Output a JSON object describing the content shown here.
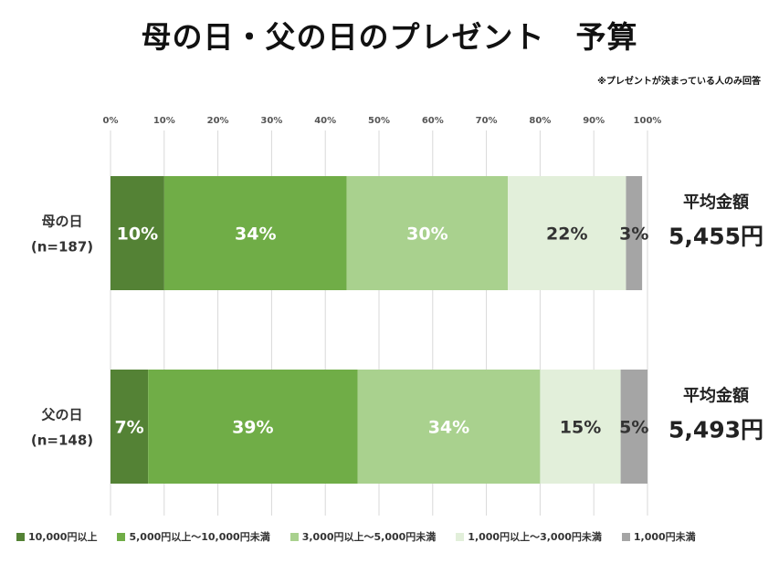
{
  "title": "母の日・父の日のプレゼント　予算",
  "note": "※プレゼントが決まっている人のみ回答",
  "chart_data": {
    "type": "bar",
    "orientation": "horizontal",
    "stacked": true,
    "xlim": [
      0,
      100
    ],
    "x_ticks": [
      "0%",
      "10%",
      "20%",
      "30%",
      "40%",
      "50%",
      "60%",
      "70%",
      "80%",
      "90%",
      "100%"
    ],
    "grid": true,
    "legend_position": "bottom",
    "categories": [
      {
        "name": "母の日",
        "sample": "(n=187)",
        "avg_label": "平均金額",
        "avg_value": "5,455円"
      },
      {
        "name": "父の日",
        "sample": "(n=148)",
        "avg_label": "平均金額",
        "avg_value": "5,493円"
      }
    ],
    "series": [
      {
        "name": "10,000円以上",
        "color": "#548235",
        "text_color": "#ffffff",
        "values": [
          10,
          7
        ],
        "labels": [
          "10%",
          "7%"
        ]
      },
      {
        "name": "5,000円以上～10,000円未満",
        "color": "#70ad47",
        "text_color": "#ffffff",
        "values": [
          34,
          39
        ],
        "labels": [
          "34%",
          "39%"
        ]
      },
      {
        "name": "3,000円以上～5,000円未満",
        "color": "#a9d18e",
        "text_color": "#ffffff",
        "values": [
          30,
          34
        ],
        "labels": [
          "30%",
          "34%"
        ]
      },
      {
        "name": "1,000円以上～3,000円未満",
        "color": "#e2efda",
        "text_color": "#333333",
        "values": [
          22,
          15
        ],
        "labels": [
          "22%",
          "15%"
        ]
      },
      {
        "name": "1,000円未満",
        "color": "#a5a5a5",
        "text_color": "#333333",
        "values": [
          3,
          5
        ],
        "labels": [
          "3%",
          "5%"
        ]
      }
    ]
  }
}
